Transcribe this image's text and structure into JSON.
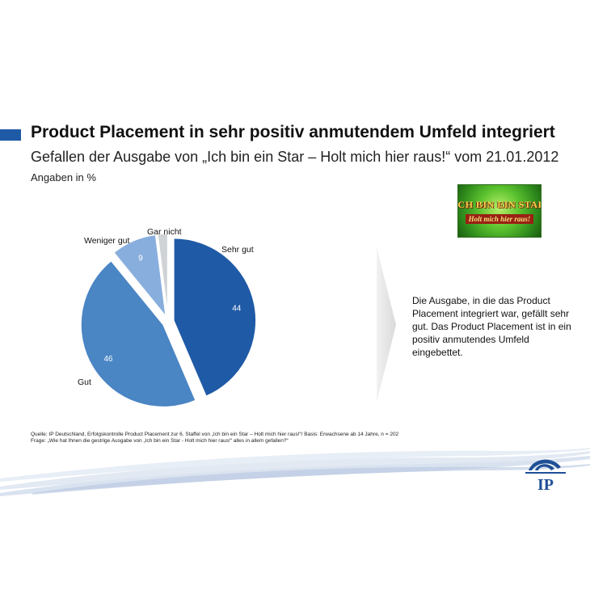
{
  "header": {
    "title": "Product Placement in sehr positiv anmutendem Umfeld integriert",
    "subtitle": "Gefallen der Ausgabe von „Ich bin ein Star – Holt mich hier raus!“ vom 21.01.2012",
    "unit_note": "Angaben in %"
  },
  "show_logo": {
    "line1": "ICH BIN EIN STAR",
    "line2": "Holt mich hier raus!"
  },
  "chart_data": {
    "type": "pie",
    "slices": [
      {
        "label": "Sehr gut",
        "value": 44,
        "color": "#1f5aa6"
      },
      {
        "label": "Gut",
        "value": 46,
        "color": "#4a85c4"
      },
      {
        "label": "Weniger gut",
        "value": 9,
        "color": "#88aede"
      },
      {
        "label": "Gar nicht",
        "value": 2,
        "color": "#d0d3d6"
      }
    ],
    "value_labels_shown": [
      true,
      true,
      true,
      false
    ]
  },
  "callout": {
    "text": "Die Ausgabe, in die das Product Placement integriert war, gefällt sehr gut. Das Product Placement ist in ein positiv anmutendes Umfeld eingebettet."
  },
  "footer": {
    "source": "Quelle: IP Deutschland, Erfolgskontrolle Product Placement zur 6. Staffel von „Ich bin ein Star – Holt mich hier raus!“/ Basis: Erwachsene ab 14 Jahre, n = 202",
    "question": "Frage: „Wie hat Ihnen die gestrige Ausgabe von „Ich bin ein Star - Holt mich hier raus!“ alles in allem gefallen?“"
  },
  "brand": {
    "logo_text": "IP",
    "color": "#1f4f96"
  }
}
